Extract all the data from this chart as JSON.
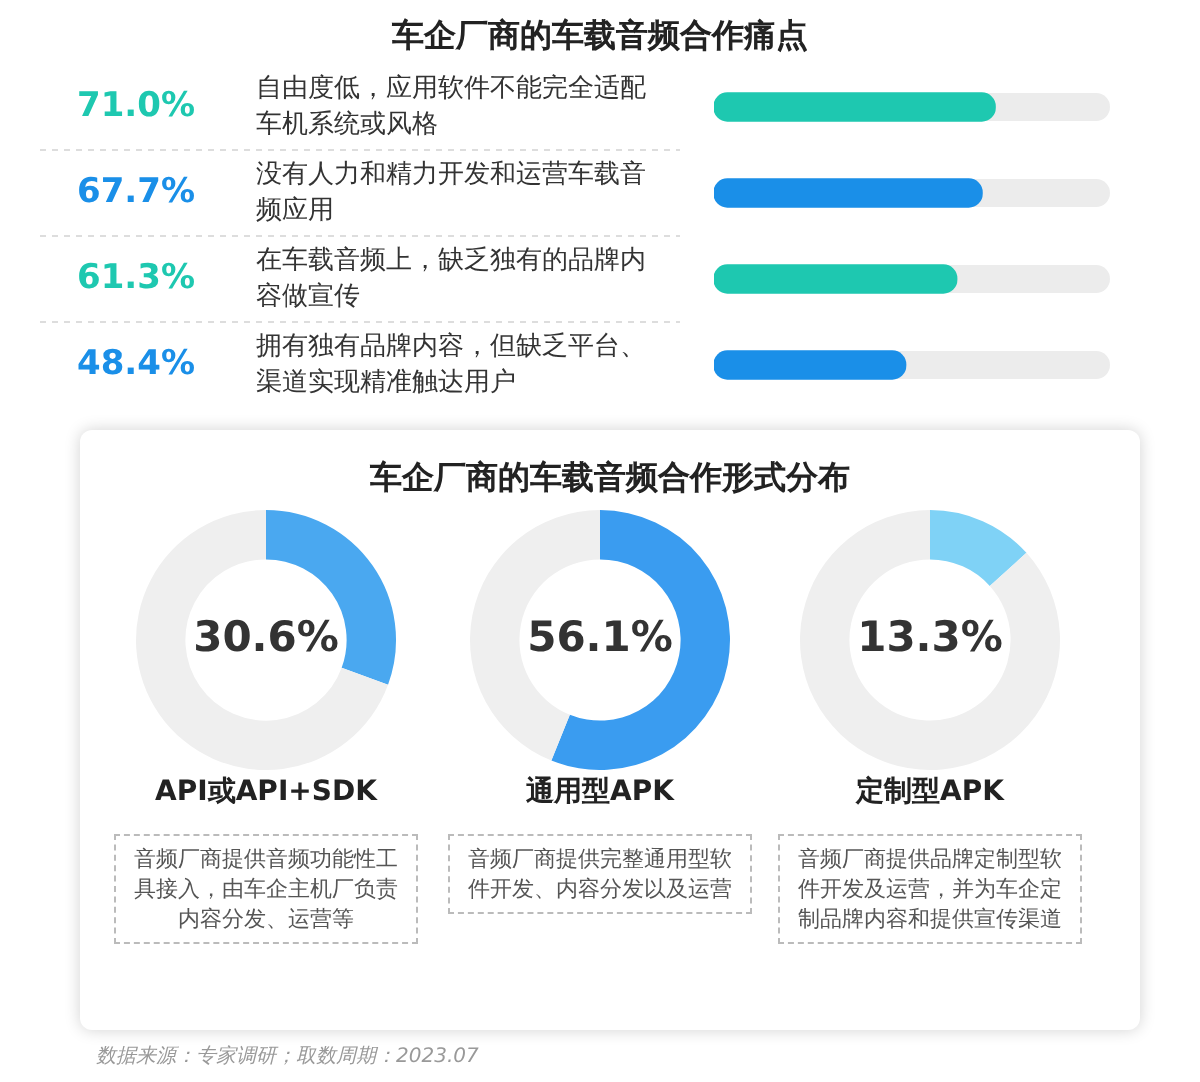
{
  "chart_data": [
    {
      "type": "bar",
      "orientation": "horizontal",
      "title": "车企厂商的车载音频合作痛点",
      "categories": [
        "自由度低，应用软件不能完全适配车机系统或风格",
        "没有人力和精力开发和运营车载音频应用",
        "在车载音频上，缺乏独有的品牌内容做宣传",
        "拥有独有品牌内容，但缺乏平台、渠道实现精准触达用户"
      ],
      "values": [
        71.0,
        67.7,
        61.3,
        48.4
      ],
      "colors": [
        "#1ec8b0",
        "#1a8fe8",
        "#1ec8b0",
        "#1a8fe8"
      ],
      "value_labels": [
        "71.0%",
        "67.7%",
        "61.3%",
        "48.4%"
      ],
      "xlim": [
        0,
        100
      ],
      "tick_labels": false,
      "legend": false,
      "annotations": [
        "数据来源：专家调研；取数周期：2023.07"
      ]
    },
    {
      "type": "other",
      "title": "车企厂商的车载音频合作形式分布"
    },
    {
      "type": "donut",
      "xlabel": "API或API+SDK",
      "categories": [
        null,
        null
      ],
      "values": [
        30.6,
        69.4
      ],
      "colors": [
        "#4aa8f0",
        "#efefef"
      ],
      "value_labels": [
        "30.6%",
        null
      ],
      "legend": false,
      "annotations": [
        "音频厂商提供音频功能性工具接入，由车企主机厂负责内容分发、运营等"
      ]
    },
    {
      "type": "donut",
      "xlabel": "通用型APK",
      "categories": [
        null,
        null
      ],
      "values": [
        56.1,
        43.9
      ],
      "colors": [
        "#3a9cf0",
        "#efefef"
      ],
      "value_labels": [
        "56.1%",
        null
      ],
      "legend": false,
      "annotations": [
        "音频厂商提供完整通用型软件开发、内容分发以及运营"
      ]
    },
    {
      "type": "donut",
      "xlabel": "定制型APK",
      "categories": [
        null,
        null
      ],
      "values": [
        13.3,
        86.7
      ],
      "colors": [
        "#7fd2f6",
        "#efefef"
      ],
      "value_labels": [
        "13.3%",
        null
      ],
      "legend": false,
      "annotations": [
        "音频厂商提供品牌定制型软件开发及运营，并为车企定制品牌内容和提供宣传渠道"
      ]
    }
  ]
}
